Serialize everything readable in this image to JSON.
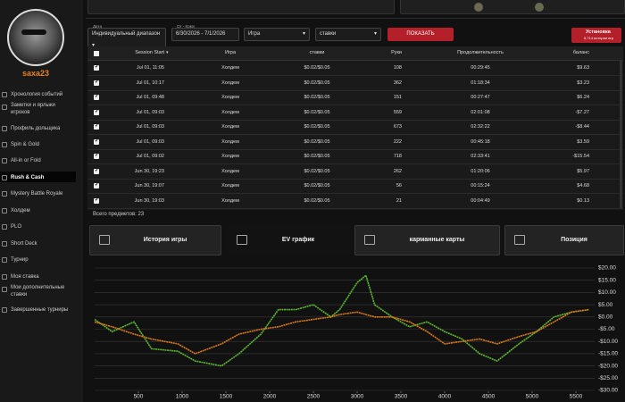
{
  "sidebar": {
    "username": "saxa23",
    "menu": [
      "Хронология событий",
      "Заметки и ярлыки игроков",
      "Профиль дольщика",
      "Spin & Gold",
      "All-in or Fold",
      "Rush & Cash",
      "Mystery Battle Royale",
      "Холдем",
      "PLO",
      "Short Deck",
      "Турнир",
      "Моя ставка",
      "Мои дополнительные ставки",
      "Завершенные турниры"
    ]
  },
  "filters": {
    "date_label": "Дата",
    "date_mode": "Индивидуальный диапазон",
    "range_label": "От - Кому",
    "range": "6/30/2026 - 7/1/2026",
    "game": "Игра",
    "stakes": "ставки",
    "show_button": "ПОКАЗАТЬ",
    "install_button": "Установка",
    "install_note": "5,714 истории игр"
  },
  "table": {
    "headers": [
      "Session Start",
      "Игра",
      "ставки",
      "Руки",
      "Продолжительность",
      "баланс"
    ],
    "rows": [
      [
        "Jul 01, 11:05",
        "Холдем",
        "$0.02/$0.05",
        108,
        "00:29:45",
        "$9.63"
      ],
      [
        "Jul 01, 10:17",
        "Холдем",
        "$0.02/$0.05",
        362,
        "01:18:34",
        "$3.23"
      ],
      [
        "Jul 01, 09:48",
        "Холдем",
        "$0.02/$0.05",
        151,
        "00:27:47",
        "$6.24"
      ],
      [
        "Jul 01, 09:03",
        "Холдем",
        "$0.02/$0.05",
        559,
        "02:01:08",
        "-$7.27"
      ],
      [
        "Jul 01, 09:03",
        "Холдем",
        "$0.02/$0.05",
        673,
        "02:32:22",
        "-$8.44"
      ],
      [
        "Jul 01, 09:03",
        "Холдем",
        "$0.02/$0.05",
        222,
        "00:45:18",
        "$3.59"
      ],
      [
        "Jul 01, 09:02",
        "Холдем",
        "$0.02/$0.05",
        718,
        "02:33:41",
        "-$15.54"
      ],
      [
        "Jun 30, 19:23",
        "Холдем",
        "$0.02/$0.05",
        262,
        "01:20:06",
        "$5.97"
      ],
      [
        "Jun 30, 19:07",
        "Холдем",
        "$0.02/$0.05",
        56,
        "00:15:24",
        "$4.68"
      ],
      [
        "Jun 30, 19:03",
        "Холдем",
        "$0.02/$0.05",
        21,
        "00:04:49",
        "$0.13"
      ]
    ],
    "total": "Всего предметов: 23"
  },
  "tabs": [
    "История игры",
    "EV график",
    "карманные карты",
    "Позиция"
  ],
  "chart_data": {
    "type": "line",
    "x": [
      0,
      200,
      450,
      650,
      950,
      1150,
      1450,
      1650,
      1900,
      2100,
      2300,
      2500,
      2700,
      2800,
      3000,
      3100,
      3200,
      3400,
      3600,
      3800,
      4000,
      4200,
      4400,
      4600,
      4850,
      5050,
      5250,
      5450,
      5650
    ],
    "series": [
      {
        "color": "#5cb82e",
        "values": [
          -1,
          -6,
          -2,
          -13,
          -14,
          -18,
          -20,
          -15,
          -7,
          3,
          3,
          5,
          0,
          3,
          14,
          17,
          5,
          0,
          -4,
          -2,
          -6,
          -9,
          -15,
          -18,
          -11,
          -6,
          0,
          2,
          3
        ]
      },
      {
        "color": "#d9781c",
        "values": [
          -2,
          -4,
          -7,
          -9,
          -11,
          -15,
          -11,
          -7,
          -5,
          -4,
          -2,
          -1,
          0,
          1,
          2,
          1,
          0,
          0,
          -2,
          -6,
          -11,
          -10,
          -9,
          -11,
          -8,
          -6,
          -2,
          2,
          3
        ]
      }
    ],
    "xlim": [
      0,
      5714
    ],
    "xticks": [
      500,
      1000,
      1500,
      2000,
      2500,
      3000,
      3500,
      4000,
      4500,
      5000,
      5500
    ],
    "ylim": [
      -30,
      20
    ],
    "yticks": [
      {
        "value": 20,
        "label": "$20.00"
      },
      {
        "value": 15,
        "label": "$15.00"
      },
      {
        "value": 10,
        "label": "$10.00"
      },
      {
        "value": 5,
        "label": "$5.00"
      },
      {
        "value": 0,
        "label": "$0.00"
      },
      {
        "value": -5,
        "label": "-$5.00"
      },
      {
        "value": -10,
        "label": "-$10.00"
      },
      {
        "value": -15,
        "label": "-$15.00"
      },
      {
        "value": -20,
        "label": "-$20.00"
      },
      {
        "value": -25,
        "label": "-$25.00"
      },
      {
        "value": -30,
        "label": "-$30.00"
      }
    ],
    "grid": true
  }
}
